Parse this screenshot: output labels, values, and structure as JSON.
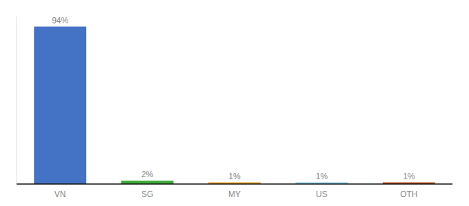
{
  "chart_data": {
    "type": "bar",
    "categories": [
      "VN",
      "SG",
      "MY",
      "US",
      "OTH"
    ],
    "values": [
      94,
      2,
      1,
      1,
      1
    ],
    "value_labels": [
      "94%",
      "2%",
      "1%",
      "1%",
      "1%"
    ],
    "colors": [
      "#4472C4",
      "#3BAA35",
      "#E8A020",
      "#87CEEB",
      "#B84B1A"
    ],
    "ylim": [
      0,
      100
    ],
    "data_labels": true,
    "tick_labels": "x"
  }
}
